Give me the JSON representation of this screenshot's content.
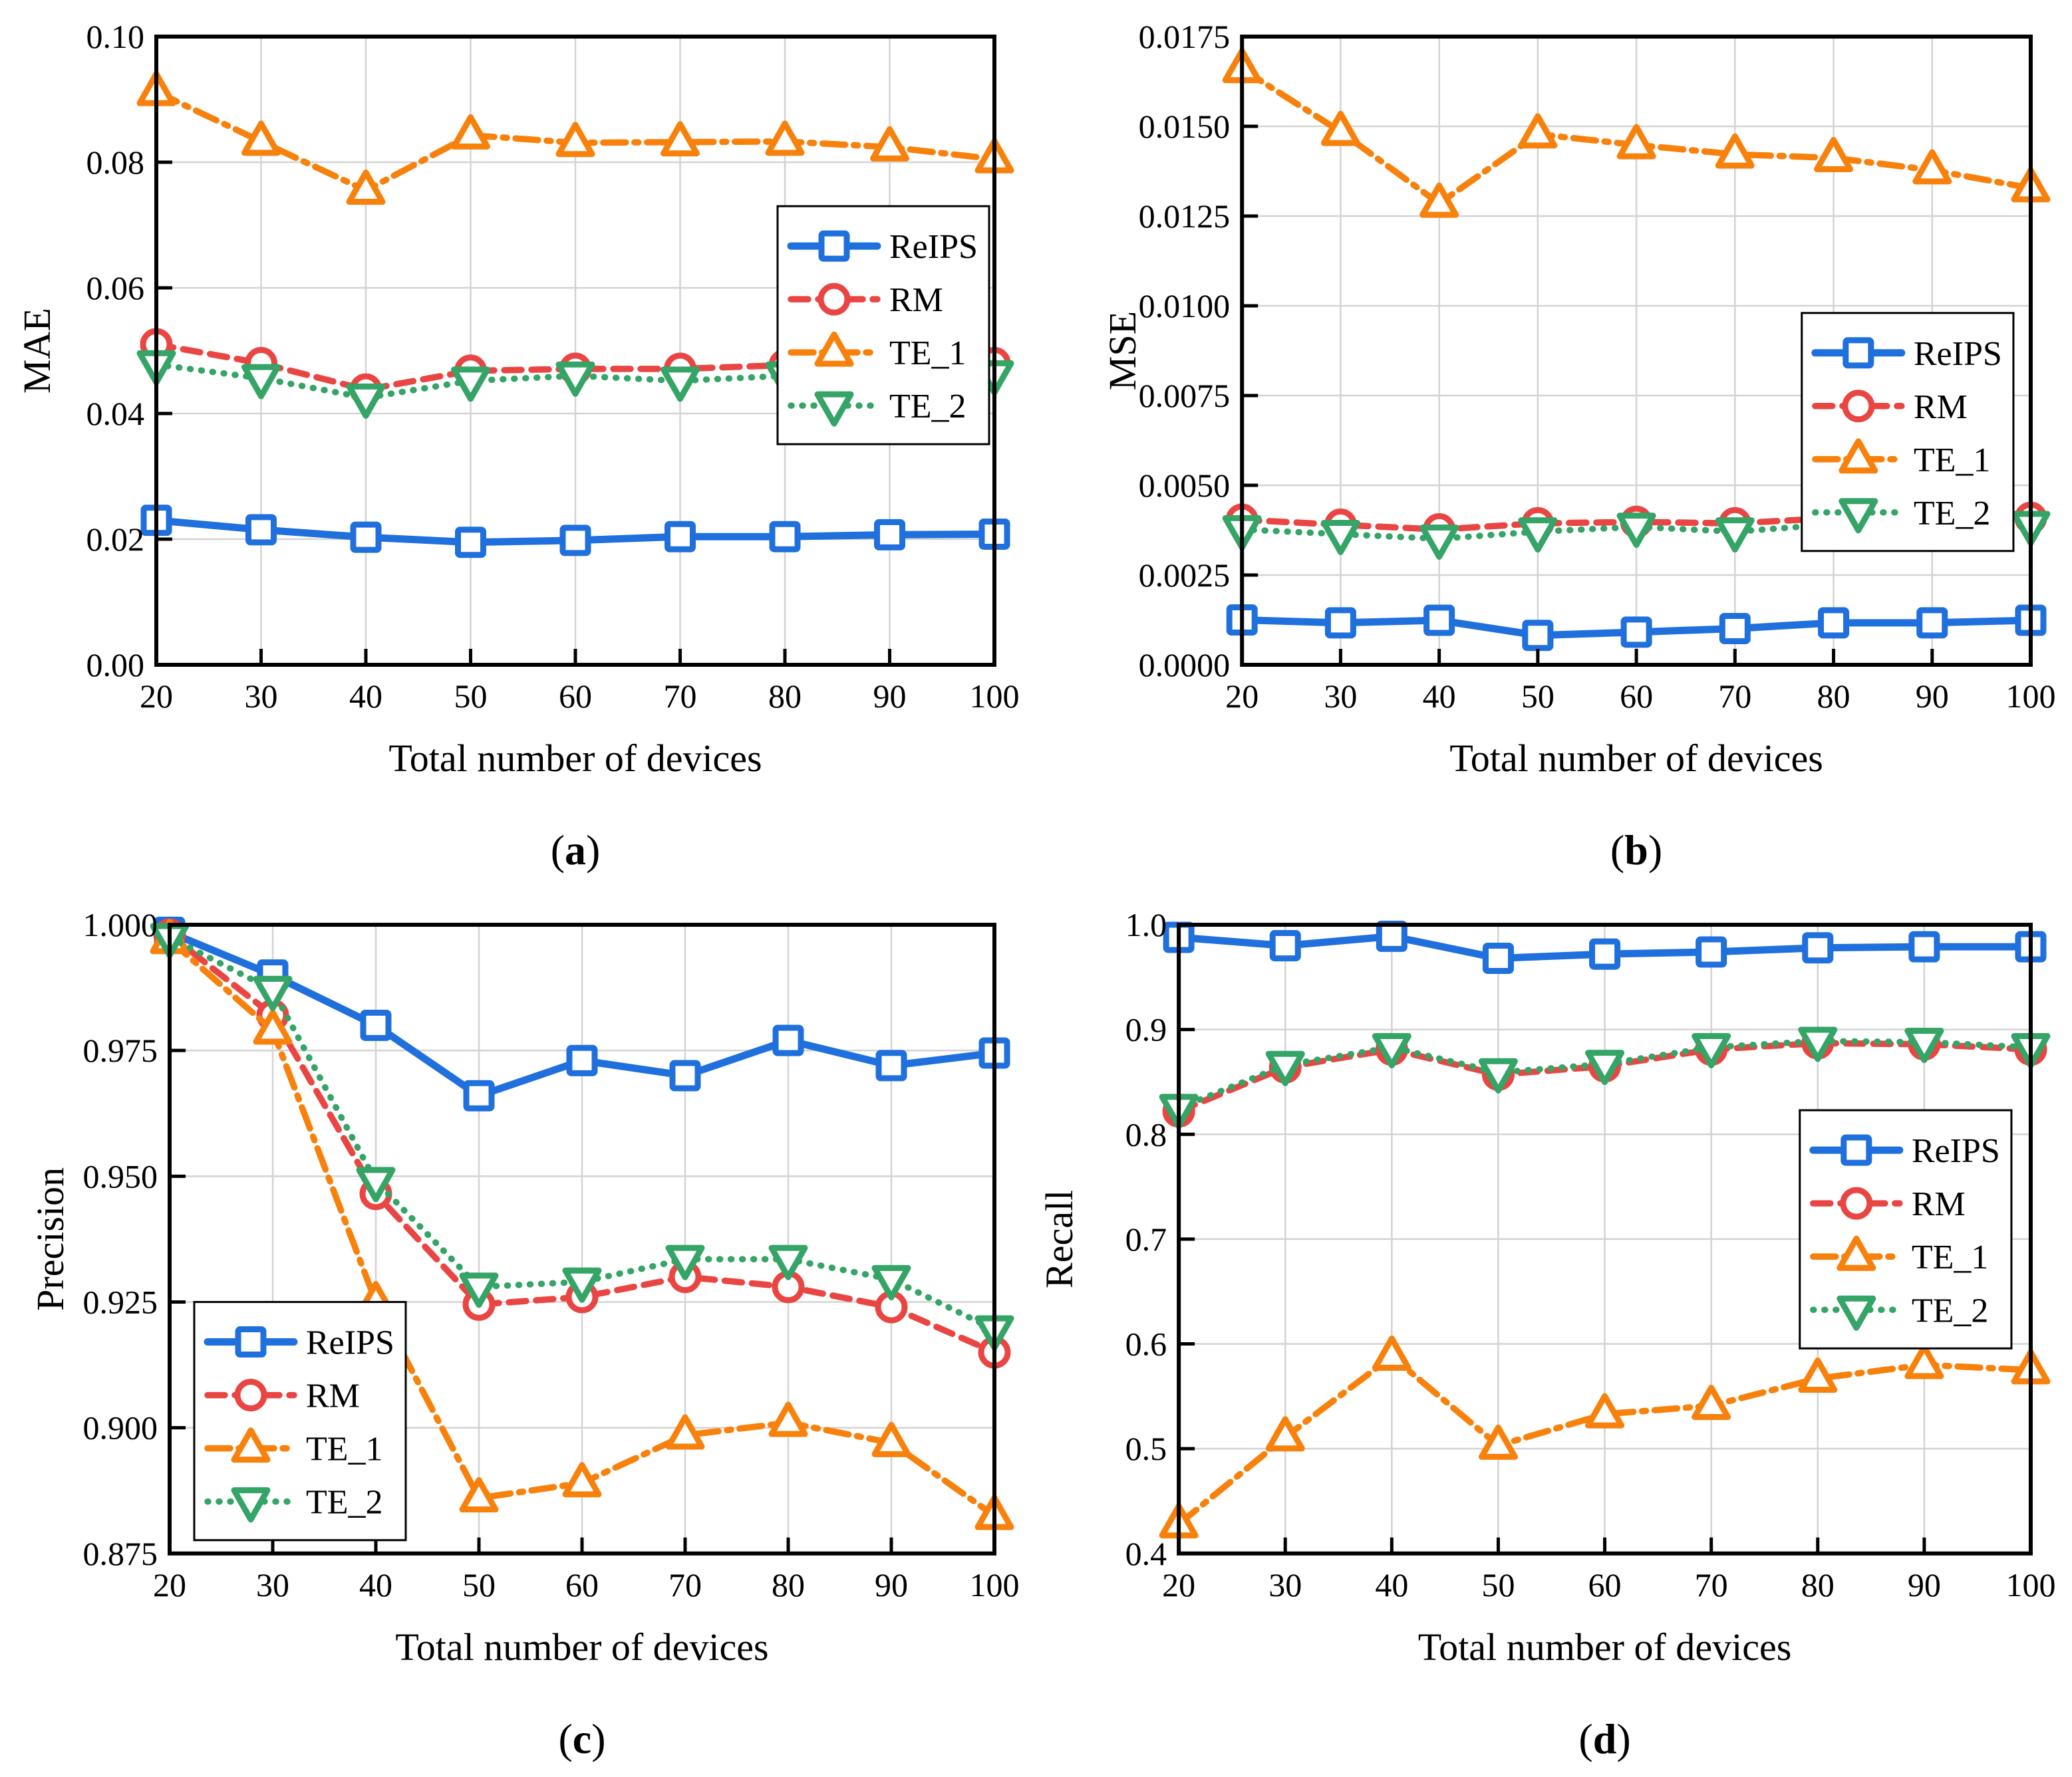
{
  "figure": {
    "background": "#ffffff",
    "grid_color": "#d3d3d3",
    "spine_color": "#000000",
    "series_colors": {
      "ReIPS": "#1f70dd",
      "RM": "#e94643",
      "TE_1": "#f8810c",
      "TE_2": "#35a467"
    },
    "legend_labels": [
      "ReIPS",
      "RM",
      "TE_1",
      "TE_2"
    ]
  },
  "chart_data": [
    {
      "type": "line",
      "panel": "a",
      "caption": "(a)",
      "xlabel": "Total number of devices",
      "ylabel": "MAE",
      "x": [
        20,
        30,
        40,
        50,
        60,
        70,
        80,
        90,
        100
      ],
      "xtick_labels": [
        "20",
        "30",
        "40",
        "50",
        "60",
        "70",
        "80",
        "90",
        "100"
      ],
      "xlim": [
        20,
        100
      ],
      "ylim": [
        0,
        0.1
      ],
      "yticks": [
        0,
        0.02,
        0.04,
        0.06,
        0.08,
        0.1
      ],
      "ytick_labels": [
        "0.00",
        "0.02",
        "0.04",
        "0.06",
        "0.08",
        "0.10"
      ],
      "grid": true,
      "legend": {
        "side": "right",
        "gap": 8,
        "fy": 0.27
      },
      "layout": {
        "plot_left": 235
      },
      "series": [
        {
          "name": "ReIPS",
          "color": "#1f70dd",
          "dash": "solid",
          "marker": "square",
          "values": [
            0.023,
            0.0215,
            0.0203,
            0.0195,
            0.0198,
            0.0204,
            0.0204,
            0.0207,
            0.0208
          ]
        },
        {
          "name": "RM",
          "color": "#e94643",
          "dash": "dashed",
          "marker": "circle",
          "values": [
            0.051,
            0.048,
            0.0438,
            0.0468,
            0.0471,
            0.0471,
            0.0477,
            0.0485,
            0.048
          ]
        },
        {
          "name": "TE_1",
          "color": "#f8810c",
          "dash": "dashdot",
          "marker": "triangle-up",
          "values": [
            0.0912,
            0.0833,
            0.0755,
            0.0843,
            0.0831,
            0.0832,
            0.0833,
            0.0824,
            0.0805
          ]
        },
        {
          "name": "TE_2",
          "color": "#35a467",
          "dash": "dotted",
          "marker": "triangle-down",
          "values": [
            0.0478,
            0.0456,
            0.0425,
            0.0452,
            0.046,
            0.0452,
            0.046,
            0.047,
            0.0462
          ]
        }
      ]
    },
    {
      "type": "line",
      "panel": "b",
      "caption": "(b)",
      "xlabel": "Total number of devices",
      "ylabel": "MSE",
      "x": [
        20,
        30,
        40,
        50,
        60,
        70,
        80,
        90,
        100
      ],
      "xtick_labels": [
        "20",
        "30",
        "40",
        "50",
        "60",
        "70",
        "80",
        "90",
        "100"
      ],
      "xlim": [
        20,
        100
      ],
      "ylim": [
        0,
        0.0175
      ],
      "yticks": [
        0,
        0.0025,
        0.005,
        0.0075,
        0.01,
        0.0125,
        0.015,
        0.0175
      ],
      "ytick_labels": [
        "0.0000",
        "0.0025",
        "0.0050",
        "0.0075",
        "0.0100",
        "0.0125",
        "0.0150",
        "0.0175"
      ],
      "grid": true,
      "legend": {
        "side": "right",
        "gap": 26,
        "fy": 0.44
      },
      "layout": {
        "plot_left": 310
      },
      "series": [
        {
          "name": "ReIPS",
          "color": "#1f70dd",
          "dash": "solid",
          "marker": "square",
          "values": [
            0.00125,
            0.00117,
            0.00124,
            0.00082,
            0.00091,
            0.00101,
            0.00117,
            0.00117,
            0.00124
          ]
        },
        {
          "name": "RM",
          "color": "#e94643",
          "dash": "dashed",
          "marker": "circle",
          "values": [
            0.00404,
            0.0039,
            0.00377,
            0.00394,
            0.00398,
            0.00394,
            0.00409,
            0.00421,
            0.00409
          ]
        },
        {
          "name": "TE_1",
          "color": "#f8810c",
          "dash": "dashdot",
          "marker": "triangle-up",
          "values": [
            0.0166,
            0.01485,
            0.01285,
            0.01478,
            0.01448,
            0.01422,
            0.01412,
            0.01378,
            0.01328
          ]
        },
        {
          "name": "TE_2",
          "color": "#35a467",
          "dash": "dotted",
          "marker": "triangle-down",
          "values": [
            0.00377,
            0.00364,
            0.00351,
            0.00371,
            0.00384,
            0.00371,
            0.00391,
            0.00404,
            0.00389
          ]
        }
      ]
    },
    {
      "type": "line",
      "panel": "c",
      "caption": "(c)",
      "xlabel": "Total number of devices",
      "ylabel": "Precision",
      "x": [
        20,
        30,
        40,
        50,
        60,
        70,
        80,
        90,
        100
      ],
      "xtick_labels": [
        "20",
        "30",
        "40",
        "50",
        "60",
        "70",
        "80",
        "90",
        "100"
      ],
      "xlim": [
        20,
        100
      ],
      "ylim": [
        0.875,
        1.0
      ],
      "yticks": [
        0.875,
        0.9,
        0.925,
        0.95,
        0.975,
        1.0
      ],
      "ytick_labels": [
        "0.875",
        "0.900",
        "0.925",
        "0.950",
        "0.975",
        "1.000"
      ],
      "grid": true,
      "legend": {
        "side": "left",
        "gap": 37,
        "fy": 0.6
      },
      "layout": {
        "plot_left": 255
      },
      "series": [
        {
          "name": "ReIPS",
          "color": "#1f70dd",
          "dash": "solid",
          "marker": "square",
          "values": [
            0.9985,
            0.99,
            0.98,
            0.966,
            0.973,
            0.97,
            0.977,
            0.972,
            0.9745
          ]
        },
        {
          "name": "RM",
          "color": "#e94643",
          "dash": "dashed",
          "marker": "circle",
          "values": [
            0.998,
            0.982,
            0.9465,
            0.9245,
            0.926,
            0.93,
            0.928,
            0.924,
            0.915
          ]
        },
        {
          "name": "TE_1",
          "color": "#f8810c",
          "dash": "dashdot",
          "marker": "triangle-up",
          "values": [
            0.997,
            0.979,
            0.925,
            0.886,
            0.889,
            0.8985,
            0.901,
            0.897,
            0.8825
          ]
        },
        {
          "name": "TE_2",
          "color": "#35a467",
          "dash": "dotted",
          "marker": "triangle-down",
          "values": [
            0.9975,
            0.987,
            0.949,
            0.928,
            0.929,
            0.9335,
            0.9335,
            0.9295,
            0.9195
          ]
        }
      ]
    },
    {
      "type": "line",
      "panel": "d",
      "caption": "(d)",
      "xlabel": "Total number of devices",
      "ylabel": "Recall",
      "x": [
        20,
        30,
        40,
        50,
        60,
        70,
        80,
        90,
        100
      ],
      "xtick_labels": [
        "20",
        "30",
        "40",
        "50",
        "60",
        "70",
        "80",
        "90",
        "100"
      ],
      "xlim": [
        20,
        100
      ],
      "ylim": [
        0.4,
        1.0
      ],
      "yticks": [
        0.4,
        0.5,
        0.6,
        0.7,
        0.8,
        0.9,
        1.0
      ],
      "ytick_labels": [
        "0.4",
        "0.5",
        "0.6",
        "0.7",
        "0.8",
        "0.9",
        "1.0"
      ],
      "grid": true,
      "legend": {
        "side": "right",
        "gap": 29,
        "fy": 0.295
      },
      "layout": {
        "plot_left": 215
      },
      "series": [
        {
          "name": "ReIPS",
          "color": "#1f70dd",
          "dash": "solid",
          "marker": "square",
          "values": [
            0.988,
            0.98,
            0.989,
            0.968,
            0.972,
            0.974,
            0.978,
            0.979,
            0.979
          ]
        },
        {
          "name": "RM",
          "color": "#e94643",
          "dash": "dashed",
          "marker": "circle",
          "values": [
            0.822,
            0.864,
            0.881,
            0.857,
            0.865,
            0.881,
            0.887,
            0.886,
            0.881
          ]
        },
        {
          "name": "TE_1",
          "color": "#f8810c",
          "dash": "dashdot",
          "marker": "triangle-up",
          "values": [
            0.428,
            0.511,
            0.588,
            0.503,
            0.533,
            0.541,
            0.567,
            0.58,
            0.575
          ]
        },
        {
          "name": "TE_2",
          "color": "#35a467",
          "dash": "dotted",
          "marker": "triangle-down",
          "values": [
            0.825,
            0.866,
            0.883,
            0.859,
            0.867,
            0.883,
            0.889,
            0.888,
            0.883
          ]
        }
      ]
    }
  ]
}
